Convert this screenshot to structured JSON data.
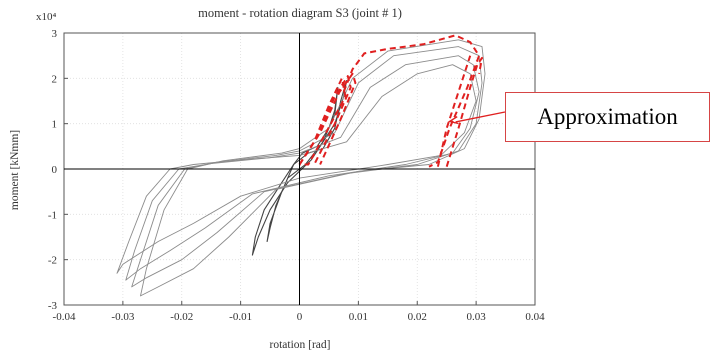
{
  "chart_data": {
    "type": "line",
    "title": "moment - rotation diagram S3 (joint # 1)",
    "xlabel": "rotation [rad]",
    "ylabel": "moment [kNmm]",
    "y_multiplier": "x10⁴",
    "xlim": [
      -0.04,
      0.04
    ],
    "ylim": [
      -3,
      3
    ],
    "x_ticks": [
      "-0.04",
      "-0.03",
      "-0.02",
      "-0.01",
      "0",
      "0.01",
      "0.02",
      "0.03",
      "0.04"
    ],
    "y_ticks": [
      "3",
      "2",
      "1",
      "0",
      "-1",
      "-2",
      "-3"
    ],
    "grid": true,
    "colors": {
      "hysteresis": "#8c8c8c",
      "approximation": "#e02020",
      "axes": "#000000",
      "callout_border": "#d64545"
    },
    "hysteresis_loops": [
      {
        "points": [
          [
            0.0015,
            0.35
          ],
          [
            0.004,
            0.45
          ],
          [
            0.006,
            0.9
          ],
          [
            0.007,
            1.5
          ],
          [
            0.008,
            1.95
          ],
          [
            0.0075,
            1.6
          ],
          [
            0.006,
            1.0
          ],
          [
            0.002,
            0.2
          ],
          [
            -0.002,
            -0.3
          ],
          [
            -0.005,
            -0.9
          ],
          [
            -0.007,
            -1.5
          ],
          [
            -0.008,
            -1.9
          ],
          [
            -0.0075,
            -1.5
          ],
          [
            -0.006,
            -0.9
          ],
          [
            -0.003,
            -0.3
          ],
          [
            -0.001,
            0.1
          ],
          [
            0.0015,
            0.35
          ]
        ]
      },
      {
        "points": [
          [
            0.0005,
            0.35
          ],
          [
            0.003,
            0.5
          ],
          [
            0.005,
            0.9
          ],
          [
            0.006,
            1.3
          ],
          [
            0.0065,
            1.8
          ],
          [
            0.006,
            1.2
          ],
          [
            0.004,
            0.6
          ],
          [
            0.001,
            0.1
          ],
          [
            -0.002,
            -0.2
          ],
          [
            -0.004,
            -0.8
          ],
          [
            -0.005,
            -1.3
          ],
          [
            -0.0055,
            -1.6
          ],
          [
            -0.005,
            -1.2
          ],
          [
            -0.003,
            -0.5
          ],
          [
            -0.001,
            0.1
          ],
          [
            0.0005,
            0.35
          ]
        ]
      },
      {
        "points": [
          [
            0.0,
            0.3
          ],
          [
            0.008,
            0.6
          ],
          [
            0.014,
            1.6
          ],
          [
            0.02,
            2.1
          ],
          [
            0.026,
            2.3
          ],
          [
            0.029,
            2.1
          ],
          [
            0.03,
            1.5
          ],
          [
            0.028,
            0.8
          ],
          [
            0.024,
            0.3
          ],
          [
            0.015,
            0.1
          ],
          [
            0.0,
            -0.2
          ],
          [
            -0.01,
            -0.6
          ],
          [
            -0.018,
            -1.2
          ],
          [
            -0.024,
            -1.6
          ],
          [
            -0.03,
            -2.1
          ],
          [
            -0.031,
            -2.3
          ],
          [
            -0.029,
            -1.6
          ],
          [
            -0.026,
            -0.6
          ],
          [
            -0.022,
            0.0
          ],
          [
            -0.018,
            0.1
          ],
          [
            -0.01,
            0.2
          ],
          [
            0.0,
            0.3
          ]
        ]
      },
      {
        "points": [
          [
            0.0,
            0.35
          ],
          [
            0.007,
            0.7
          ],
          [
            0.012,
            1.8
          ],
          [
            0.018,
            2.3
          ],
          [
            0.027,
            2.5
          ],
          [
            0.0295,
            2.3
          ],
          [
            0.0305,
            1.7
          ],
          [
            0.029,
            0.9
          ],
          [
            0.026,
            0.35
          ],
          [
            0.018,
            0.1
          ],
          [
            0.005,
            -0.15
          ],
          [
            -0.008,
            -0.55
          ],
          [
            -0.016,
            -1.3
          ],
          [
            -0.022,
            -1.8
          ],
          [
            -0.027,
            -2.2
          ],
          [
            -0.0295,
            -2.45
          ],
          [
            -0.028,
            -1.8
          ],
          [
            -0.025,
            -0.7
          ],
          [
            -0.0205,
            0.0
          ],
          [
            -0.015,
            0.12
          ],
          [
            -0.005,
            0.25
          ],
          [
            0.0,
            0.35
          ]
        ]
      },
      {
        "points": [
          [
            0.0,
            0.4
          ],
          [
            0.006,
            0.8
          ],
          [
            0.01,
            1.9
          ],
          [
            0.016,
            2.5
          ],
          [
            0.027,
            2.7
          ],
          [
            0.0305,
            2.5
          ],
          [
            0.031,
            1.9
          ],
          [
            0.03,
            1.0
          ],
          [
            0.027,
            0.4
          ],
          [
            0.02,
            0.1
          ],
          [
            0.008,
            -0.1
          ],
          [
            -0.006,
            -0.5
          ],
          [
            -0.014,
            -1.4
          ],
          [
            -0.02,
            -2.0
          ],
          [
            -0.026,
            -2.4
          ],
          [
            -0.0285,
            -2.6
          ],
          [
            -0.027,
            -2.0
          ],
          [
            -0.024,
            -0.8
          ],
          [
            -0.0195,
            0.0
          ],
          [
            -0.014,
            0.15
          ],
          [
            -0.004,
            0.3
          ],
          [
            0.0,
            0.4
          ]
        ]
      },
      {
        "points": [
          [
            0.0,
            0.45
          ],
          [
            0.005,
            0.9
          ],
          [
            0.009,
            2.0
          ],
          [
            0.015,
            2.6
          ],
          [
            0.027,
            2.85
          ],
          [
            0.031,
            2.7
          ],
          [
            0.0315,
            2.1
          ],
          [
            0.0305,
            1.1
          ],
          [
            0.028,
            0.45
          ],
          [
            0.022,
            0.1
          ],
          [
            0.01,
            -0.05
          ],
          [
            -0.004,
            -0.45
          ],
          [
            -0.012,
            -1.5
          ],
          [
            -0.018,
            -2.2
          ],
          [
            -0.024,
            -2.6
          ],
          [
            -0.027,
            -2.8
          ],
          [
            -0.026,
            -2.2
          ],
          [
            -0.023,
            -0.9
          ],
          [
            -0.019,
            0.0
          ],
          [
            -0.013,
            0.18
          ],
          [
            -0.003,
            0.35
          ],
          [
            0.0,
            0.45
          ]
        ]
      }
    ],
    "approximation_polylines": [
      {
        "points": [
          [
            0.0,
            0.1
          ],
          [
            0.0025,
            0.6
          ],
          [
            0.005,
            1.4
          ],
          [
            0.0072,
            2.0
          ],
          [
            0.0078,
            1.6
          ],
          [
            0.0045,
            0.8
          ],
          [
            0.0015,
            0.1
          ],
          [
            0.0,
            0.1
          ]
        ]
      },
      {
        "points": [
          [
            0.0,
            0.1
          ],
          [
            0.003,
            0.7
          ],
          [
            0.006,
            1.6
          ],
          [
            0.0082,
            2.05
          ],
          [
            0.0087,
            1.8
          ],
          [
            0.006,
            1.0
          ],
          [
            0.0025,
            0.1
          ]
        ]
      },
      {
        "points": [
          [
            0.0,
            0.1
          ],
          [
            0.0035,
            0.8
          ],
          [
            0.0068,
            1.7
          ],
          [
            0.009,
            2.1
          ],
          [
            0.0095,
            1.9
          ],
          [
            0.007,
            1.1
          ],
          [
            0.0035,
            0.1
          ]
        ]
      },
      {
        "points": [
          [
            0.0075,
            1.7
          ],
          [
            0.009,
            2.2
          ],
          [
            0.011,
            2.55
          ],
          [
            0.015,
            2.65
          ],
          [
            0.021,
            2.75
          ],
          [
            0.0265,
            2.95
          ],
          [
            0.029,
            2.8
          ],
          [
            0.0305,
            2.5
          ],
          [
            0.0285,
            1.8
          ],
          [
            0.0255,
            0.9
          ],
          [
            0.0235,
            0.15
          ],
          [
            0.022,
            0.05
          ]
        ]
      },
      {
        "points": [
          [
            0.025,
            0.05
          ],
          [
            0.027,
            0.9
          ],
          [
            0.029,
            1.8
          ],
          [
            0.0302,
            2.3
          ],
          [
            0.031,
            2.45
          ],
          [
            0.0305,
            2.1
          ]
        ]
      },
      {
        "points": [
          [
            0.0235,
            0.05
          ],
          [
            0.025,
            0.9
          ],
          [
            0.0275,
            1.9
          ],
          [
            0.029,
            2.5
          ]
        ]
      }
    ],
    "annotation": {
      "text": "Approximation",
      "target": [
        0.0255,
        1.05
      ]
    }
  }
}
